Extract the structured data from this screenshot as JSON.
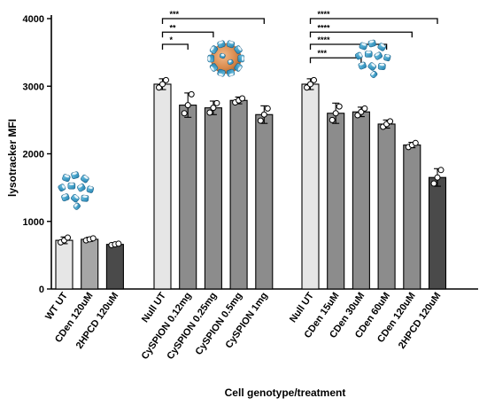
{
  "chart_data": {
    "type": "bar",
    "title": "",
    "xlabel": "Cell genotype/treatment",
    "ylabel": "lysotracker MFI",
    "ylim": [
      0,
      4000
    ],
    "yticks": [
      0,
      1000,
      2000,
      3000,
      4000
    ],
    "grid": false,
    "legend": "none",
    "error_bars": true,
    "groups": [
      {
        "bars": [
          {
            "label": "WT UT",
            "value": 720,
            "error": 50,
            "points": [
              690,
              720,
              760
            ],
            "color": "#e6e6e6"
          },
          {
            "label": "CDen 120uM",
            "value": 735,
            "error": 30,
            "points": [
              720,
              735,
              750
            ],
            "color": "#a6a6a6"
          },
          {
            "label": "2HPCD 120uM",
            "value": 660,
            "error": 15,
            "points": [
              650,
              660,
              670
            ],
            "color": "#4a4a4a"
          }
        ]
      },
      {
        "bars": [
          {
            "label": "Null UT",
            "value": 3030,
            "error": 80,
            "points": [
              2980,
              3030,
              3090
            ],
            "color": "#e6e6e6"
          },
          {
            "label": "CySPION 0.12mg",
            "value": 2720,
            "error": 180,
            "points": [
              2600,
              2720,
              2880
            ],
            "color": "#8c8c8c"
          },
          {
            "label": "CySPION 0.25mg",
            "value": 2680,
            "error": 100,
            "points": [
              2610,
              2680,
              2750
            ],
            "color": "#8c8c8c"
          },
          {
            "label": "CySPION 0.5mg",
            "value": 2790,
            "error": 50,
            "points": [
              2760,
              2790,
              2820
            ],
            "color": "#8c8c8c"
          },
          {
            "label": "CySPION 1mg",
            "value": 2580,
            "error": 130,
            "points": [
              2490,
              2580,
              2670
            ],
            "color": "#8c8c8c"
          }
        ]
      },
      {
        "bars": [
          {
            "label": "Null UT",
            "value": 3030,
            "error": 80,
            "points": [
              2980,
              3030,
              3090
            ],
            "color": "#e6e6e6"
          },
          {
            "label": "CDen 15uM",
            "value": 2600,
            "error": 150,
            "points": [
              2500,
              2600,
              2700
            ],
            "color": "#8c8c8c"
          },
          {
            "label": "CDen 30uM",
            "value": 2620,
            "error": 70,
            "points": [
              2570,
              2620,
              2670
            ],
            "color": "#8c8c8c"
          },
          {
            "label": "CDen 60uM",
            "value": 2440,
            "error": 60,
            "points": [
              2400,
              2440,
              2480
            ],
            "color": "#8c8c8c"
          },
          {
            "label": "CDen 120uM",
            "value": 2130,
            "error": 40,
            "points": [
              2100,
              2130,
              2160
            ],
            "color": "#8c8c8c"
          },
          {
            "label": "2HPCD 120uM",
            "value": 1650,
            "error": 130,
            "points": [
              1560,
              1650,
              1760
            ],
            "color": "#4a4a4a"
          }
        ]
      }
    ],
    "significance": [
      {
        "group": 1,
        "from": 0,
        "to": 4,
        "label": "***",
        "y": 4000
      },
      {
        "group": 1,
        "from": 0,
        "to": 2,
        "label": "**",
        "y": 3800
      },
      {
        "group": 1,
        "from": 0,
        "to": 1,
        "label": "*",
        "y": 3620
      },
      {
        "group": 2,
        "from": 0,
        "to": 5,
        "label": "****",
        "y": 4000
      },
      {
        "group": 2,
        "from": 0,
        "to": 4,
        "label": "****",
        "y": 3800
      },
      {
        "group": 2,
        "from": 0,
        "to": 3,
        "label": "****",
        "y": 3620
      },
      {
        "group": 2,
        "from": 0,
        "to": 2,
        "label": "***",
        "y": 3420
      }
    ],
    "icons": [
      {
        "name": "cyclodextrin-cluster-icon",
        "group": 0,
        "at": 1,
        "y": 1250
      },
      {
        "name": "cyspion-nanoparticle-icon",
        "group": 1,
        "at": 3,
        "y": 3200
      },
      {
        "name": "cyclodextrin-cluster-icon",
        "group": 2,
        "at": 3,
        "y": 3200
      }
    ]
  }
}
